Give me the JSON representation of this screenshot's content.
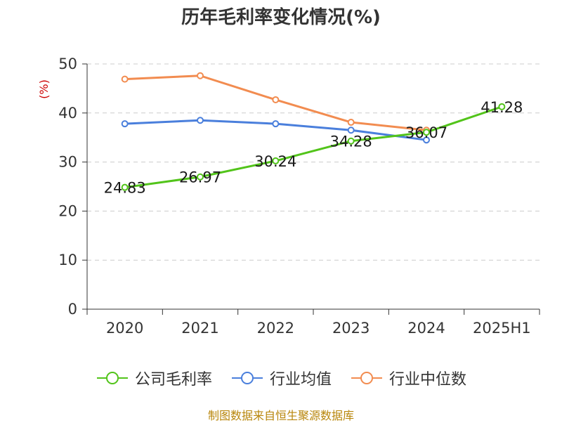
{
  "chart_data": {
    "type": "line",
    "title": "历年毛利率变化情况(%)",
    "ylabel": "(%)",
    "xlabel": "",
    "categories": [
      "2020",
      "2021",
      "2022",
      "2023",
      "2024",
      "2025H1"
    ],
    "ylim": [
      0,
      50
    ],
    "yticks": [
      "0",
      "10",
      "20",
      "30",
      "40",
      "50"
    ],
    "grid": true,
    "legend_position": "bottom",
    "series": [
      {
        "name": "公司毛利率",
        "color": "#52c41a",
        "values": [
          24.83,
          26.97,
          30.24,
          34.28,
          36.07,
          41.28
        ],
        "labels": [
          "24.83",
          "26.97",
          "30.24",
          "34.28",
          "36.07",
          "41.28"
        ]
      },
      {
        "name": "行业均值",
        "color": "#4a7fdc",
        "values": [
          37.8,
          38.5,
          37.8,
          36.5,
          34.5,
          null
        ]
      },
      {
        "name": "行业中位数",
        "color": "#f28c50",
        "values": [
          46.9,
          47.6,
          42.7,
          38.1,
          36.5,
          null
        ]
      }
    ]
  },
  "footer": "制图数据来自恒生聚源数据库"
}
